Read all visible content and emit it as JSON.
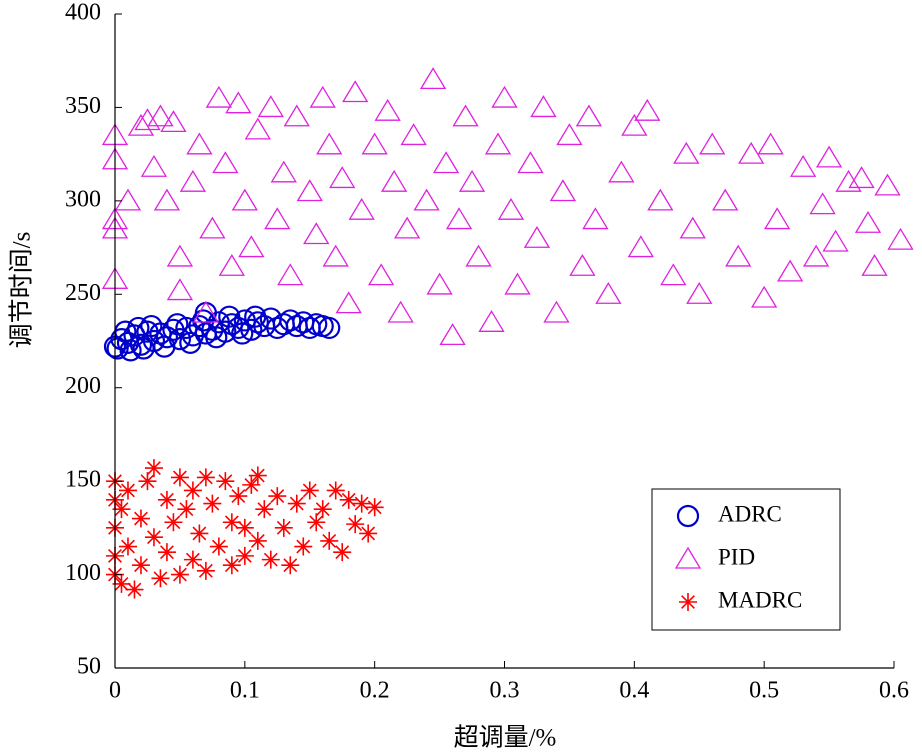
{
  "chart_data": {
    "type": "scatter",
    "xlabel": "超调量/%",
    "ylabel": "调节时间/s",
    "xlim": [
      0,
      0.6
    ],
    "ylim": [
      50,
      400
    ],
    "xticks": [
      0,
      0.1,
      0.2,
      0.3,
      0.4,
      0.5,
      0.6
    ],
    "yticks": [
      50,
      100,
      150,
      200,
      250,
      300,
      350,
      400
    ],
    "legend": "lower right",
    "series": [
      {
        "name": "ADRC",
        "color": "#0000cc",
        "marker": "o",
        "x": [
          0,
          0.005,
          0.01,
          0.015,
          0.02,
          0.025,
          0.03,
          0.035,
          0.04,
          0.045,
          0.05,
          0.055,
          0.06,
          0.065,
          0.07,
          0.075,
          0.08,
          0.085,
          0.09,
          0.095,
          0.1,
          0.105,
          0.11,
          0.115,
          0.12,
          0.125,
          0.13,
          0.135,
          0.14,
          0.145,
          0.15,
          0.155,
          0.16,
          0.165,
          0.002,
          0.008,
          0.012,
          0.018,
          0.022,
          0.028,
          0.038,
          0.048,
          0.058,
          0.068,
          0.078,
          0.088,
          0.098,
          0.108,
          0.07
        ],
        "values": [
          222,
          226,
          224,
          228,
          223,
          230,
          225,
          229,
          227,
          231,
          226,
          232,
          228,
          233,
          229,
          231,
          235,
          230,
          234,
          232,
          236,
          231,
          235,
          233,
          237,
          232,
          234,
          236,
          233,
          235,
          232,
          234,
          233,
          232,
          221,
          230,
          220,
          232,
          221,
          233,
          222,
          234,
          224,
          236,
          227,
          238,
          229,
          238,
          240
        ]
      },
      {
        "name": "PID",
        "color": "#e020e0",
        "marker": "^",
        "x": [
          0,
          0,
          0,
          0,
          0,
          0.01,
          0.02,
          0.025,
          0.03,
          0.035,
          0.04,
          0.045,
          0.05,
          0.05,
          0.06,
          0.065,
          0.07,
          0.075,
          0.08,
          0.085,
          0.09,
          0.095,
          0.1,
          0.105,
          0.11,
          0.12,
          0.125,
          0.13,
          0.135,
          0.14,
          0.15,
          0.155,
          0.16,
          0.165,
          0.17,
          0.175,
          0.18,
          0.185,
          0.19,
          0.2,
          0.205,
          0.21,
          0.215,
          0.22,
          0.225,
          0.23,
          0.24,
          0.245,
          0.25,
          0.255,
          0.26,
          0.265,
          0.27,
          0.275,
          0.28,
          0.29,
          0.295,
          0.3,
          0.305,
          0.31,
          0.32,
          0.325,
          0.33,
          0.34,
          0.345,
          0.35,
          0.36,
          0.365,
          0.37,
          0.38,
          0.39,
          0.4,
          0.405,
          0.41,
          0.42,
          0.43,
          0.44,
          0.445,
          0.45,
          0.46,
          0.47,
          0.48,
          0.49,
          0.5,
          0.505,
          0.51,
          0.52,
          0.53,
          0.54,
          0.545,
          0.55,
          0.555,
          0.565,
          0.575,
          0.58,
          0.585,
          0.595,
          0.605
        ],
        "values": [
          335,
          322,
          290,
          285,
          258,
          300,
          340,
          343,
          318,
          345,
          300,
          342,
          270,
          252,
          310,
          330,
          240,
          285,
          355,
          320,
          265,
          352,
          300,
          275,
          338,
          350,
          290,
          315,
          260,
          345,
          305,
          282,
          355,
          330,
          270,
          312,
          245,
          358,
          295,
          330,
          260,
          348,
          310,
          240,
          285,
          335,
          300,
          365,
          255,
          320,
          228,
          290,
          345,
          310,
          270,
          235,
          330,
          355,
          295,
          255,
          320,
          280,
          350,
          240,
          305,
          335,
          265,
          345,
          290,
          250,
          315,
          340,
          275,
          348,
          300,
          260,
          325,
          285,
          250,
          330,
          300,
          270,
          325,
          248,
          330,
          290,
          262,
          318,
          270,
          298,
          323,
          278,
          310,
          312,
          288,
          265,
          308,
          279
        ]
      },
      {
        "name": "MADRC",
        "color": "#ff0000",
        "marker": "*",
        "x": [
          0,
          0,
          0,
          0,
          0,
          0.005,
          0.005,
          0.01,
          0.01,
          0.015,
          0.02,
          0.02,
          0.025,
          0.03,
          0.03,
          0.035,
          0.04,
          0.04,
          0.045,
          0.05,
          0.05,
          0.055,
          0.06,
          0.06,
          0.065,
          0.07,
          0.07,
          0.075,
          0.08,
          0.085,
          0.09,
          0.09,
          0.095,
          0.1,
          0.1,
          0.105,
          0.11,
          0.11,
          0.115,
          0.12,
          0.125,
          0.13,
          0.135,
          0.14,
          0.145,
          0.15,
          0.155,
          0.16,
          0.165,
          0.17,
          0.175,
          0.18,
          0.185,
          0.19,
          0.195,
          0.2
        ],
        "values": [
          150,
          100,
          125,
          140,
          110,
          95,
          135,
          145,
          115,
          92,
          130,
          105,
          150,
          157,
          120,
          98,
          140,
          112,
          128,
          152,
          100,
          135,
          108,
          145,
          122,
          152,
          102,
          138,
          115,
          150,
          105,
          128,
          142,
          110,
          125,
          148,
          153,
          118,
          135,
          108,
          142,
          125,
          105,
          138,
          115,
          145,
          128,
          135,
          118,
          145,
          112,
          140,
          127,
          138,
          122,
          136
        ]
      }
    ]
  }
}
